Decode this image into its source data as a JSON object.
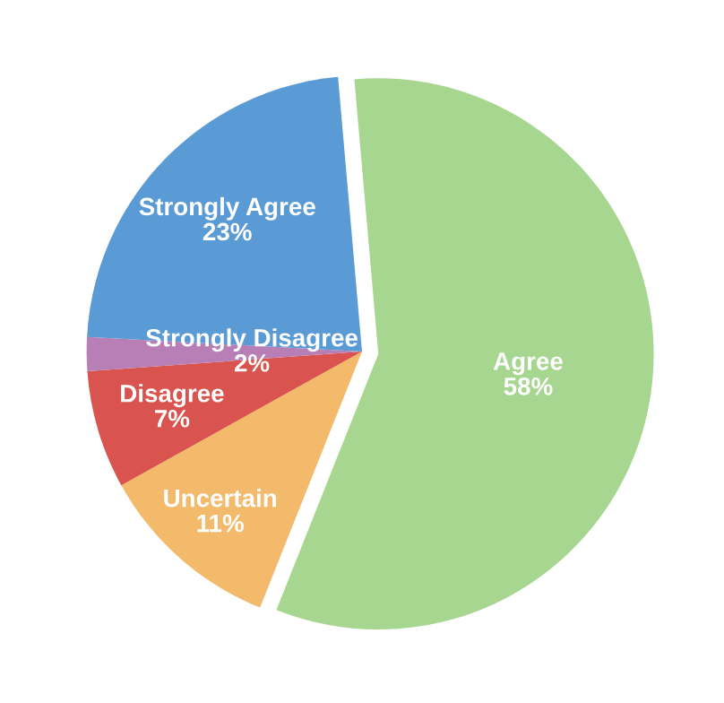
{
  "chart_data": {
    "type": "pie",
    "categories": [
      "Agree",
      "Uncertain",
      "Disagree",
      "Strongly Disagree",
      "Strongly Agree"
    ],
    "values": [
      58,
      11,
      7,
      2,
      23
    ],
    "value_labels": [
      "58%",
      "11%",
      "7%",
      "2%",
      "23%"
    ],
    "colors": [
      "#a6d68f",
      "#f2ba6a",
      "#d9544f",
      "#b77fb5",
      "#5b9bd5"
    ]
  }
}
